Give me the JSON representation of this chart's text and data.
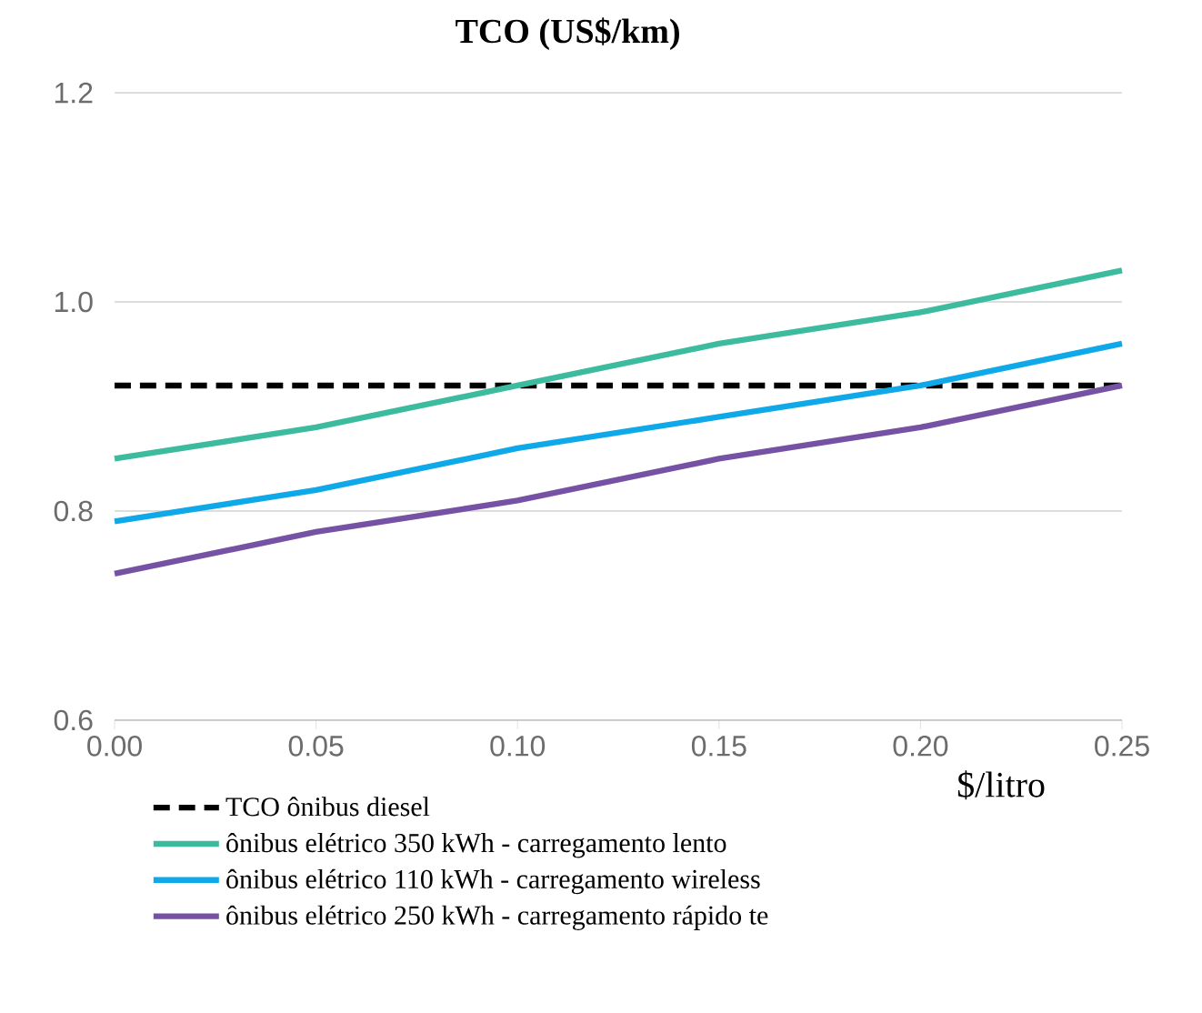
{
  "chart_data": {
    "type": "line",
    "title": "TCO (US$/km)",
    "xlabel": "$/litro",
    "x": [
      0.0,
      0.05,
      0.1,
      0.15,
      0.2,
      0.25
    ],
    "series": [
      {
        "name": "TCO ônibus diesel",
        "color": "#000000",
        "line_style": "dashed",
        "values": [
          0.92,
          0.92,
          0.92,
          0.92,
          0.92,
          0.92
        ]
      },
      {
        "name": "ônibus elétrico 350 kWh - carregamento lento",
        "color": "#3dbb9f",
        "line_style": "solid",
        "values": [
          0.85,
          0.88,
          0.92,
          0.96,
          0.99,
          1.03
        ]
      },
      {
        "name": "ônibus elétrico 110 kWh - carregamento wireless",
        "color": "#0fa8e8",
        "line_style": "solid",
        "values": [
          0.79,
          0.82,
          0.86,
          0.89,
          0.92,
          0.96
        ]
      },
      {
        "name": "ônibus elétrico 250 kWh - carregamento rápido te",
        "color": "#7652a4",
        "line_style": "solid",
        "values": [
          0.74,
          0.78,
          0.81,
          0.85,
          0.88,
          0.92
        ]
      }
    ],
    "xlim": [
      0,
      0.25
    ],
    "ylim": [
      0.6,
      1.2
    ],
    "xticks": [
      {
        "value": 0,
        "label": "0.00"
      },
      {
        "value": 0.05,
        "label": "0.05"
      },
      {
        "value": 0.1,
        "label": "0.10"
      },
      {
        "value": 0.15,
        "label": "0.15"
      },
      {
        "value": 0.2,
        "label": "0.20"
      },
      {
        "value": 0.25,
        "label": "0.25"
      }
    ],
    "yticks": [
      {
        "value": 0.6,
        "label": "0.6"
      },
      {
        "value": 0.8,
        "label": "0.8"
      },
      {
        "value": 1.0,
        "label": "1.0"
      },
      {
        "value": 1.2,
        "label": "1.2"
      }
    ],
    "grid": "y",
    "legend": "bottom",
    "marker": "none"
  }
}
